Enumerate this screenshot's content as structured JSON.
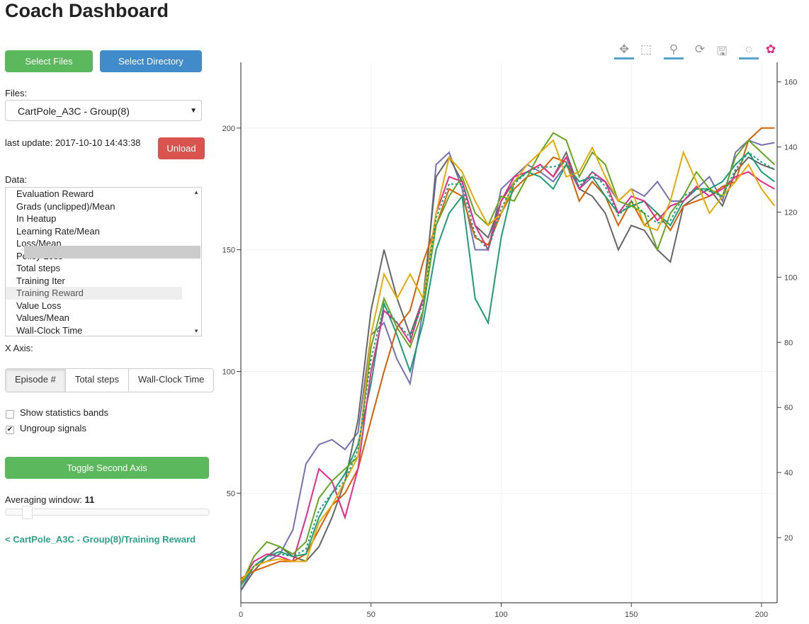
{
  "title": "Coach Dashboard",
  "buttons": {
    "select_files": "Select Files",
    "select_directory": "Select Directory",
    "unload": "Unload",
    "toggle_axis": "Toggle Second Axis"
  },
  "files": {
    "label": "Files:",
    "selected": "CartPole_A3C - Group(8)"
  },
  "last_update": "last update: 2017-10-10 14:43:38",
  "data_list": {
    "label": "Data:",
    "items": [
      "Evaluation Reward",
      "Grads (unclipped)/Mean",
      "In Heatup",
      "Learning Rate/Mean",
      "Loss/Mean",
      "Policy Loss",
      "Total steps",
      "Training Iter",
      "Training Reward",
      "Value Loss",
      "Values/Mean",
      "Wall-Clock Time"
    ],
    "selected": "Training Reward"
  },
  "x_axis": {
    "label": "X Axis:",
    "options": [
      "Episode #",
      "Total steps",
      "Wall-Clock Time"
    ],
    "selected": "Episode #"
  },
  "checkboxes": [
    {
      "label": "Show statistics bands",
      "checked": false
    },
    {
      "label": "Ungroup signals",
      "checked": true
    }
  ],
  "averaging": {
    "label": "Averaging window:",
    "value": "11"
  },
  "signal_link": "< CartPole_A3C - Group(8)/Training Reward",
  "toolbar": [
    "pan-icon",
    "box-zoom-icon",
    "wheel-zoom-icon",
    "reset-icon",
    "save-icon",
    "hover-icon",
    "bokeh-logo"
  ],
  "chart_data": {
    "type": "line",
    "xlim": [
      0,
      206
    ],
    "ylim": [
      5,
      227
    ],
    "y2lim": [
      0,
      166
    ],
    "xticks": [
      0,
      50,
      100,
      150,
      200
    ],
    "yticks": [
      50,
      100,
      150,
      200
    ],
    "y2ticks": [
      20,
      40,
      60,
      80,
      100,
      120,
      140,
      160
    ],
    "grid": true,
    "x": [
      0,
      5,
      10,
      15,
      20,
      25,
      30,
      35,
      40,
      45,
      50,
      55,
      60,
      65,
      70,
      75,
      80,
      85,
      90,
      95,
      100,
      105,
      110,
      115,
      120,
      125,
      130,
      135,
      140,
      145,
      150,
      155,
      160,
      165,
      170,
      175,
      180,
      185,
      190,
      195,
      200,
      205
    ],
    "series": [
      {
        "color": "#7570b3",
        "values": [
          10,
          20,
          22,
          25,
          35,
          62,
          70,
          72,
          68,
          75,
          115,
          120,
          105,
          95,
          125,
          185,
          190,
          175,
          150,
          150,
          175,
          180,
          185,
          182,
          178,
          185,
          175,
          180,
          178,
          170,
          175,
          172,
          178,
          170,
          170,
          175,
          180,
          170,
          190,
          195,
          193,
          194
        ]
      },
      {
        "color": "#666666",
        "values": [
          10,
          18,
          24,
          28,
          24,
          22,
          28,
          40,
          55,
          80,
          125,
          150,
          130,
          115,
          130,
          180,
          188,
          178,
          160,
          155,
          170,
          178,
          182,
          185,
          180,
          190,
          175,
          172,
          165,
          150,
          160,
          158,
          150,
          145,
          168,
          172,
          175,
          168,
          182,
          188,
          185,
          183
        ]
      },
      {
        "color": "#d95f02",
        "values": [
          15,
          18,
          20,
          22,
          22,
          25,
          35,
          45,
          50,
          60,
          80,
          100,
          118,
          125,
          145,
          160,
          175,
          172,
          155,
          152,
          165,
          175,
          180,
          182,
          188,
          186,
          170,
          178,
          172,
          160,
          170,
          160,
          165,
          158,
          168,
          170,
          172,
          176,
          178,
          195,
          200,
          200
        ]
      },
      {
        "color": "#1b9e77",
        "values": [
          12,
          20,
          24,
          26,
          24,
          25,
          40,
          50,
          58,
          70,
          95,
          128,
          115,
          100,
          120,
          150,
          165,
          172,
          130,
          120,
          155,
          178,
          182,
          180,
          175,
          185,
          178,
          180,
          172,
          165,
          168,
          170,
          165,
          160,
          170,
          175,
          175,
          178,
          185,
          190,
          182,
          178
        ]
      },
      {
        "color": "#e7298a",
        "values": [
          13,
          22,
          25,
          24,
          22,
          40,
          60,
          55,
          40,
          60,
          100,
          125,
          120,
          112,
          130,
          165,
          180,
          178,
          160,
          150,
          170,
          180,
          182,
          185,
          180,
          188,
          175,
          182,
          178,
          165,
          172,
          170,
          162,
          168,
          170,
          176,
          172,
          175,
          180,
          182,
          178,
          175
        ]
      },
      {
        "color": "#66a61e",
        "values": [
          12,
          24,
          30,
          28,
          25,
          30,
          48,
          55,
          60,
          65,
          110,
          130,
          118,
          110,
          125,
          160,
          172,
          180,
          165,
          160,
          172,
          170,
          180,
          190,
          198,
          195,
          180,
          190,
          185,
          170,
          168,
          165,
          150,
          165,
          172,
          182,
          175,
          172,
          188,
          195,
          190,
          185
        ]
      },
      {
        "color": "#e6ab02",
        "values": [
          14,
          20,
          22,
          23,
          22,
          22,
          38,
          45,
          55,
          65,
          115,
          140,
          130,
          140,
          130,
          165,
          188,
          182,
          170,
          160,
          165,
          178,
          185,
          190,
          195,
          180,
          182,
          192,
          180,
          170,
          175,
          160,
          158,
          170,
          190,
          178,
          165,
          172,
          178,
          185,
          175,
          168
        ]
      },
      {
        "color": "#1b9e77",
        "dashed": true,
        "values": [
          12,
          20,
          24,
          25,
          24,
          27,
          43,
          50,
          55,
          68,
          105,
          127,
          120,
          114,
          128,
          163,
          177,
          177,
          156,
          150,
          167,
          177,
          182,
          184,
          184,
          186,
          176,
          182,
          176,
          164,
          170,
          165,
          161,
          162,
          172,
          175,
          174,
          172,
          183,
          190,
          186,
          183
        ]
      }
    ]
  }
}
